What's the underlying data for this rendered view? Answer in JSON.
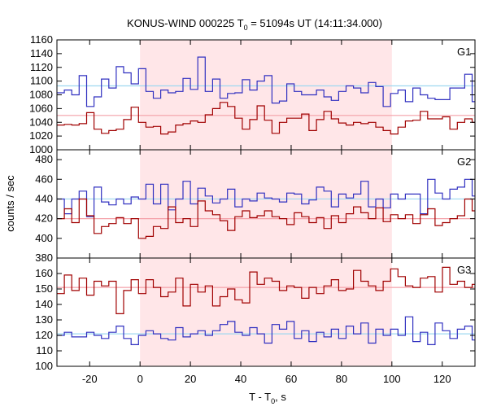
{
  "chart_data": {
    "type": "line",
    "title_prefix": "KONUS-WIND 000225 T",
    "title_sub": "0",
    "title_suffix": " = 51094s UT (14:11:34.000)",
    "xlabel_prefix": "T - T",
    "xlabel_sub": "0",
    "xlabel_suffix": ", s",
    "ylabel": "counts / sec",
    "xlim": [
      -33,
      133
    ],
    "xticks": [
      -20,
      0,
      20,
      40,
      60,
      80,
      100,
      120
    ],
    "highlight_interval": [
      0,
      100
    ],
    "colors": {
      "red_series": "#a00000",
      "blue_series": "#3030c0",
      "red_bg": "#f4a0a8",
      "blue_bg": "#9fd8f0",
      "shade": "#ffe6e8"
    },
    "step": 2.944,
    "panels": [
      {
        "label": "G1",
        "ylim": [
          1000,
          1160
        ],
        "yticks": [
          1000,
          1020,
          1040,
          1060,
          1080,
          1100,
          1120,
          1140,
          1160
        ],
        "series": [
          {
            "color": "blue",
            "background": 1093,
            "values": [
              1083,
              1087,
              1080,
              1108,
              1063,
              1077,
              1103,
              1090,
              1121,
              1112,
              1096,
              1118,
              1085,
              1075,
              1087,
              1083,
              1085,
              1104,
              1088,
              1135,
              1085,
              1103,
              1075,
              1082,
              1083,
              1102,
              1087,
              1100,
              1108,
              1068,
              1071,
              1096,
              1085,
              1080,
              1080,
              1087,
              1077,
              1072,
              1085,
              1093,
              1090,
              1083,
              1098,
              1092,
              1063,
              1082,
              1087,
              1070,
              1090,
              1080,
              1075,
              1073,
              1073,
              1090,
              1090,
              1110,
              1070,
              1093,
              1076,
              1089,
              1078,
              1079,
              1079,
              1096,
              1087,
              1084,
              1081,
              1099,
              1103,
              1094,
              1091,
              1080,
              1073,
              1079,
              1070,
              1086,
              1102,
              1093
            ]
          },
          {
            "color": "red",
            "background": 1050,
            "values": [
              1036,
              1037,
              1036,
              1038,
              1054,
              1030,
              1024,
              1028,
              1030,
              1044,
              1062,
              1040,
              1033,
              1034,
              1023,
              1026,
              1036,
              1038,
              1042,
              1040,
              1051,
              1060,
              1069,
              1063,
              1046,
              1030,
              1044,
              1064,
              1043,
              1024,
              1040,
              1046,
              1046,
              1052,
              1028,
              1044,
              1056,
              1045,
              1039,
              1036,
              1040,
              1038,
              1040,
              1033,
              1028,
              1023,
              1033,
              1042,
              1043,
              1056,
              1045,
              1045,
              1048,
              1030,
              1040,
              1045,
              1040,
              1033,
              1044,
              1048,
              1066,
              1058,
              1051,
              1045,
              1039,
              1058,
              1018,
              1062,
              1053,
              1062,
              1071,
              1058,
              1042,
              1040,
              1070,
              1043,
              1055,
              1055
            ]
          }
        ]
      },
      {
        "label": "G2",
        "ylim": [
          380,
          490
        ],
        "yticks": [
          380,
          400,
          420,
          440,
          460,
          480
        ],
        "series": [
          {
            "color": "blue",
            "background": 440,
            "values": [
              440,
              425,
              440,
              448,
              422,
              452,
              437,
              434,
              440,
              435,
              442,
              440,
              455,
              435,
              455,
              429,
              440,
              458,
              435,
              451,
              443,
              436,
              440,
              450,
              432,
              440,
              438,
              446,
              441,
              440,
              437,
              446,
              445,
              435,
              439,
              452,
              448,
              432,
              445,
              441,
              445,
              458,
              432,
              440,
              431,
              445,
              440,
              445,
              445,
              425,
              460,
              446,
              440,
              450,
              452,
              460,
              443,
              458,
              448,
              452,
              456,
              454,
              434,
              443,
              451,
              436,
              442,
              444,
              446,
              432,
              442,
              431,
              430,
              444,
              462,
              458,
              460,
              470,
              465,
              456,
              444,
              446,
              427,
              432,
              452,
              455,
              452,
              433,
              440,
              432,
              445,
              440,
              436,
              432,
              435,
              442,
              448,
              445,
              424,
              441,
              452,
              456
            ]
          },
          {
            "color": "red",
            "background": 420,
            "values": [
              420,
              430,
              416,
              440,
              423,
              405,
              412,
              415,
              421,
              415,
              420,
              400,
              402,
              412,
              410,
              432,
              416,
              420,
              412,
              438,
              428,
              424,
              418,
              408,
              422,
              428,
              421,
              423,
              428,
              422,
              420,
              414,
              426,
              422,
              416,
              421,
              410,
              423,
              416,
              425,
              432,
              426,
              420,
              431,
              417,
              424,
              420,
              424,
              415,
              424,
              430,
              413,
              416,
              420,
              423,
              440,
              428,
              418,
              410,
              432,
              412,
              425,
              423,
              416,
              430,
              408,
              436,
              421,
              421,
              412,
              426,
              424,
              431,
              430,
              415,
              428,
              410,
              420,
              431,
              426,
              436,
              428,
              425,
              440,
              422,
              430,
              415,
              423,
              418,
              412,
              397,
              413,
              418,
              432,
              426,
              402,
              420,
              424,
              425,
              415,
              420,
              412
            ]
          }
        ]
      },
      {
        "label": "G3",
        "ylim": [
          100,
          170
        ],
        "yticks": [
          100,
          110,
          120,
          130,
          140,
          150,
          160
        ],
        "series": [
          {
            "color": "red",
            "background": 151,
            "values": [
              147,
              159,
              149,
              157,
              146,
              155,
              152,
              155,
              134,
              149,
              156,
              147,
              156,
              151,
              145,
              148,
              157,
              139,
              153,
              148,
              152,
              139,
              145,
              150,
              143,
              141,
              161,
              153,
              157,
              155,
              149,
              152,
              151,
              144,
              151,
              147,
              152,
              156,
              149,
              150,
              162,
              155,
              152,
              149,
              155,
              163,
              158,
              152,
              151,
              157,
              158,
              148,
              164,
              153,
              155,
              151,
              153,
              157,
              154,
              150,
              152,
              143,
              152,
              156,
              149,
              154,
              152,
              148,
              151,
              150,
              154,
              152,
              155,
              145,
              156,
              151,
              158,
              147,
              153,
              151,
              149,
              147,
              158,
              153,
              148,
              152,
              137,
              145,
              147,
              154,
              149,
              151,
              152,
              154,
              153,
              150,
              149,
              138,
              152,
              150,
              146,
              150
            ]
          },
          {
            "color": "blue",
            "background": 121,
            "values": [
              120,
              122,
              119,
              119,
              122,
              120,
              118,
              122,
              126,
              118,
              114,
              120,
              123,
              121,
              118,
              117,
              125,
              119,
              121,
              123,
              120,
              123,
              127,
              129,
              122,
              120,
              125,
              121,
              115,
              127,
              124,
              129,
              118,
              123,
              116,
              122,
              119,
              124,
              118,
              126,
              121,
              128,
              115,
              124,
              120,
              124,
              120,
              132,
              116,
              122,
              114,
              128,
              123,
              118,
              124,
              126,
              117,
              120,
              125,
              128,
              117,
              122,
              118,
              125,
              122,
              126,
              116,
              124,
              120,
              128,
              119,
              121,
              120,
              113,
              126,
              117,
              123,
              118,
              126,
              120,
              118,
              117,
              120,
              116,
              126,
              122,
              125,
              122,
              120,
              124,
              123,
              116,
              122,
              120,
              127,
              120,
              122,
              119,
              124,
              115,
              121,
              120
            ]
          }
        ]
      }
    ]
  }
}
